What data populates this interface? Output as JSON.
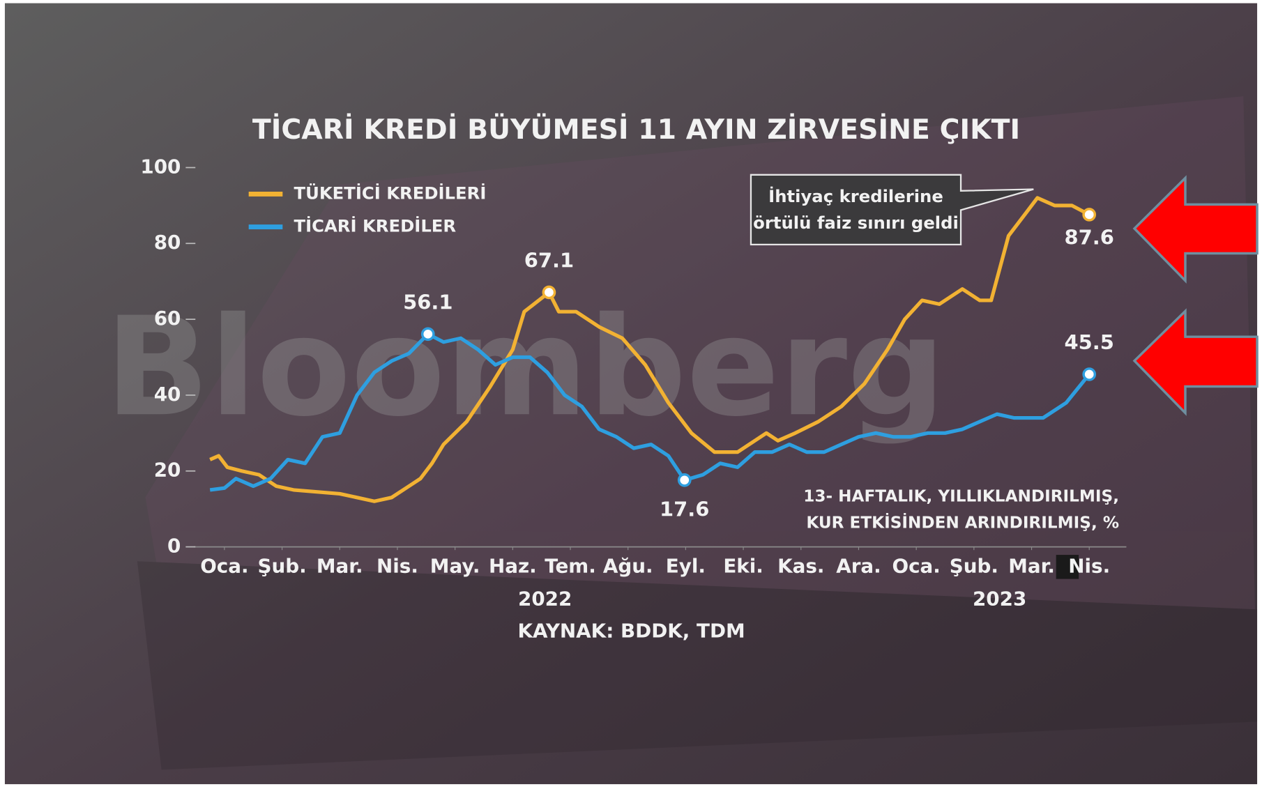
{
  "chart_data": {
    "type": "line",
    "title": "TİCARİ KREDİ BÜYÜMESİ 11 AYIN ZİRVESİNE ÇIKTI",
    "watermark": "Bloomberg",
    "annotation": [
      "İhtiyaç kredilerine",
      "örtülü faiz sınırı geldi"
    ],
    "subtitle": [
      "13- HAFTALIK, YILLIKLANDIRILMIŞ,",
      "KUR ETKİSİNDEN ARINDIRILMIŞ, %"
    ],
    "years": [
      "2022",
      "2023"
    ],
    "source": "KAYNAK: BDDK, TDM",
    "xlim": [
      -0.4,
      15.4
    ],
    "xticks": [
      {
        "value": 0,
        "label": "Oca."
      },
      {
        "value": 1,
        "label": "Şub."
      },
      {
        "value": 2,
        "label": "Mar."
      },
      {
        "value": 3,
        "label": "Nis."
      },
      {
        "value": 4,
        "label": "May."
      },
      {
        "value": 5,
        "label": "Haz."
      },
      {
        "value": 6,
        "label": "Tem."
      },
      {
        "value": 7,
        "label": "Ağu."
      },
      {
        "value": 8,
        "label": "Eyl."
      },
      {
        "value": 9,
        "label": "Eki."
      },
      {
        "value": 10,
        "label": "Kas."
      },
      {
        "value": 11,
        "label": "Ara."
      },
      {
        "value": 12,
        "label": "Oca."
      },
      {
        "value": 13,
        "label": "Şub."
      },
      {
        "value": 14,
        "label": "Mar."
      },
      {
        "value": 15,
        "label": "Nis."
      }
    ],
    "ylim": [
      0,
      100
    ],
    "yticks": [
      0,
      20,
      40,
      60,
      80,
      100
    ],
    "grid": false,
    "legend": "top-left",
    "series": [
      {
        "name": "TÜKETİCİ KREDİLERİ",
        "color": "#f2b233",
        "x": [
          -0.25,
          -0.1,
          0.05,
          0.3,
          0.6,
          0.9,
          1.2,
          1.6,
          2.0,
          2.3,
          2.6,
          2.9,
          3.2,
          3.4,
          3.6,
          3.8,
          4.2,
          4.6,
          5.0,
          5.2,
          5.63,
          5.8,
          6.1,
          6.5,
          6.9,
          7.3,
          7.7,
          8.1,
          8.5,
          8.9,
          9.2,
          9.4,
          9.6,
          9.9,
          10.3,
          10.7,
          11.1,
          11.5,
          11.8,
          12.1,
          12.4,
          12.8,
          13.1,
          13.3,
          13.6,
          13.9,
          14.1,
          14.4,
          14.7,
          15.0
        ],
        "values": [
          23,
          24,
          21,
          20,
          19,
          16,
          15,
          14.5,
          14,
          13,
          12,
          13,
          16,
          18,
          22,
          27,
          33,
          42,
          52,
          62,
          67.1,
          62,
          62,
          58,
          55,
          48,
          38,
          30,
          25,
          25,
          28,
          30,
          28,
          30,
          33,
          37,
          43,
          52,
          60,
          65,
          64,
          68,
          65,
          65,
          82,
          88,
          92,
          90,
          90,
          87.6
        ],
        "labeled_points": [
          20,
          49
        ]
      },
      {
        "name": "TİCARİ KREDİLER",
        "color": "#2e9fe0",
        "x": [
          -0.25,
          0,
          0.2,
          0.5,
          0.8,
          1.1,
          1.4,
          1.7,
          2.0,
          2.3,
          2.6,
          2.9,
          3.2,
          3.53,
          3.8,
          4.1,
          4.4,
          4.7,
          5.0,
          5.3,
          5.6,
          5.9,
          6.2,
          6.5,
          6.8,
          7.1,
          7.4,
          7.7,
          7.98,
          8.3,
          8.6,
          8.9,
          9.2,
          9.5,
          9.8,
          10.1,
          10.4,
          10.7,
          11.0,
          11.3,
          11.6,
          11.9,
          12.2,
          12.5,
          12.8,
          13.1,
          13.4,
          13.7,
          14.0,
          14.2,
          14.6,
          15.0
        ],
        "values": [
          15,
          15.5,
          18,
          16,
          18,
          23,
          22,
          29,
          30,
          40,
          46,
          49,
          51,
          56.1,
          54,
          55,
          52,
          48,
          50,
          50,
          46,
          40,
          37,
          31,
          29,
          26,
          27,
          24,
          17.6,
          19,
          22,
          21,
          25,
          25,
          27,
          25,
          25,
          27,
          29,
          30,
          29,
          29,
          30,
          30,
          31,
          33,
          35,
          34,
          34,
          34,
          38,
          45.5
        ],
        "labeled_points": [
          13,
          28,
          51
        ]
      }
    ]
  }
}
